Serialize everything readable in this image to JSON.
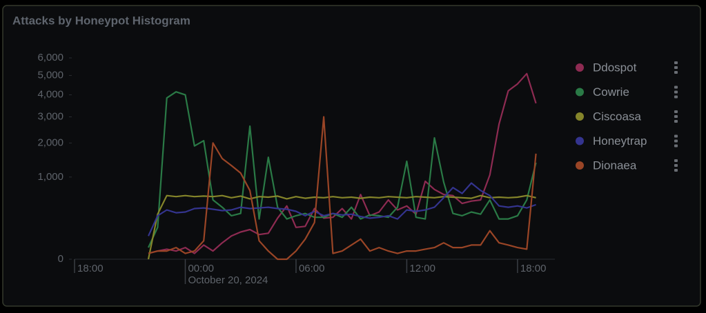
{
  "chart_data": {
    "type": "line",
    "title": "Attacks by Honeypot Histogram",
    "yscale": "sqrt",
    "ylim": [
      0,
      6000
    ],
    "yticks": [
      0,
      {
        "value": 1000,
        "label": "1,000"
      },
      {
        "value": 2000,
        "label": "2,000"
      },
      {
        "value": 3000,
        "label": "3,000"
      },
      {
        "value": 4000,
        "label": "4,000"
      },
      {
        "value": 5000,
        "label": "5,000"
      },
      {
        "value": 6000,
        "label": "6,000"
      }
    ],
    "xlim": [
      -6,
      19.5
    ],
    "xticks": [
      {
        "value": -6,
        "label": "18:00"
      },
      {
        "value": 0,
        "label": "00:00",
        "sublabel": "October 20, 2024"
      },
      {
        "value": 6,
        "label": "06:00"
      },
      {
        "value": 12,
        "label": "12:00"
      },
      {
        "value": 18,
        "label": "18:00"
      }
    ],
    "x": [
      -2,
      -1.5,
      -1,
      -0.5,
      0,
      0.5,
      1,
      1.5,
      2,
      2.5,
      3,
      3.5,
      4,
      4.5,
      5,
      5.5,
      6,
      6.5,
      7,
      7.5,
      8,
      8.5,
      9,
      9.5,
      10,
      10.5,
      11,
      11.5,
      12,
      12.5,
      13,
      13.5,
      14,
      14.5,
      15,
      15.5,
      16,
      16.5,
      17,
      17.5,
      18,
      18.5,
      19
    ],
    "legend_position": "right",
    "series": [
      {
        "name": "Ddospot",
        "color": "#8e2b52",
        "values": [
          5,
          10,
          15,
          10,
          20,
          5,
          30,
          10,
          40,
          80,
          110,
          130,
          90,
          100,
          250,
          420,
          150,
          160,
          380,
          250,
          260,
          380,
          240,
          620,
          280,
          330,
          520,
          360,
          420,
          300,
          900,
          720,
          620,
          600,
          460,
          500,
          520,
          1050,
          2700,
          4200,
          4550,
          5100,
          3600
        ]
      },
      {
        "name": "Cowrie",
        "color": "#2a7a46",
        "values": [
          20,
          150,
          3850,
          4150,
          4000,
          1900,
          2080,
          520,
          400,
          280,
          310,
          2620,
          240,
          1540,
          400,
          240,
          280,
          310,
          260,
          260,
          310,
          260,
          400,
          240,
          290,
          280,
          260,
          400,
          1420,
          260,
          240,
          2180,
          880,
          310,
          280,
          330,
          300,
          520,
          240,
          240,
          280,
          520,
          1380
        ]
      },
      {
        "name": "Ciscoasa",
        "color": "#85852a",
        "values": [
          0,
          300,
          600,
          580,
          600,
          580,
          590,
          580,
          600,
          560,
          590,
          540,
          580,
          570,
          590,
          540,
          580,
          550,
          570,
          560,
          580,
          560,
          570,
          550,
          570,
          560,
          580,
          570,
          560,
          580,
          570,
          560,
          580,
          570,
          560,
          550,
          600,
          560,
          570,
          560,
          570,
          600,
          560
        ]
      },
      {
        "name": "Honeytrap",
        "color": "#34348f",
        "values": [
          80,
          280,
          360,
          320,
          330,
          380,
          390,
          370,
          350,
          360,
          400,
          380,
          390,
          400,
          380,
          370,
          340,
          280,
          340,
          280,
          310,
          290,
          300,
          270,
          250,
          260,
          280,
          240,
          360,
          340,
          360,
          400,
          560,
          760,
          640,
          860,
          700,
          600,
          420,
          400,
          420,
          390,
          440
        ]
      },
      {
        "name": "Dionaea",
        "color": "#9a4526",
        "values": [
          5,
          10,
          10,
          20,
          5,
          10,
          50,
          2000,
          1500,
          1300,
          1100,
          700,
          50,
          10,
          0,
          0,
          10,
          60,
          200,
          3000,
          5,
          10,
          30,
          60,
          10,
          20,
          10,
          5,
          10,
          10,
          15,
          20,
          40,
          20,
          20,
          30,
          30,
          120,
          40,
          30,
          20,
          15,
          1650
        ]
      }
    ]
  }
}
